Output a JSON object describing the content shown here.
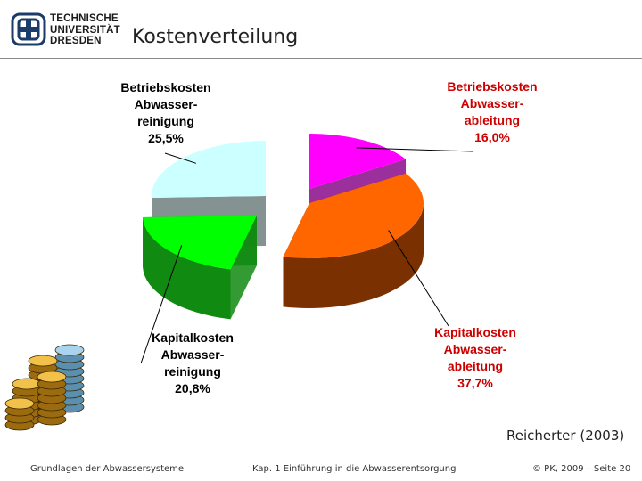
{
  "header": {
    "logo_lines": [
      "TECHNISCHE",
      "UNIVERSITÄT",
      "DRESDEN"
    ],
    "title": "Kostenverteilung"
  },
  "chart_data": {
    "type": "pie",
    "title": "Kostenverteilung",
    "slices": [
      {
        "name_lines": [
          "Betriebskosten",
          "Abwasser-",
          "ableitung"
        ],
        "value": 16.0,
        "value_label": "16,0%",
        "color": "#ff00ff",
        "side_color": "#8a0a8a",
        "label_color": "#cc0000"
      },
      {
        "name_lines": [
          "Kapitalkosten",
          "Abwasser-",
          "ableitung"
        ],
        "value": 37.7,
        "value_label": "37,7%",
        "color": "#ff6600",
        "side_color": "#7a3000",
        "label_color": "#cc0000"
      },
      {
        "name_lines": [
          "Kapitalkosten",
          "Abwasser-",
          "reinigung"
        ],
        "value": 20.8,
        "value_label": "20,8%",
        "color": "#00ff00",
        "side_color": "#118a11",
        "label_color": "#000000"
      },
      {
        "name_lines": [
          "Betriebskosten",
          "Abwasser-",
          "reinigung"
        ],
        "value": 25.5,
        "value_label": "25,5%",
        "color": "#ccffff",
        "side_color": "#6e7f7f",
        "label_color": "#000000"
      }
    ],
    "style": "3D exploded pie, left-hand half (reinigung) separated from right-hand half (ableitung)"
  },
  "source": "Reicherter (2003)",
  "footer": {
    "left": "Grundlagen der Abwassersysteme",
    "center": "Kap. 1  Einführung in die Abwasserentsorgung",
    "right": "© PK, 2009 – Seite 20"
  },
  "decoration": {
    "image": "coin-stacks-icon"
  }
}
